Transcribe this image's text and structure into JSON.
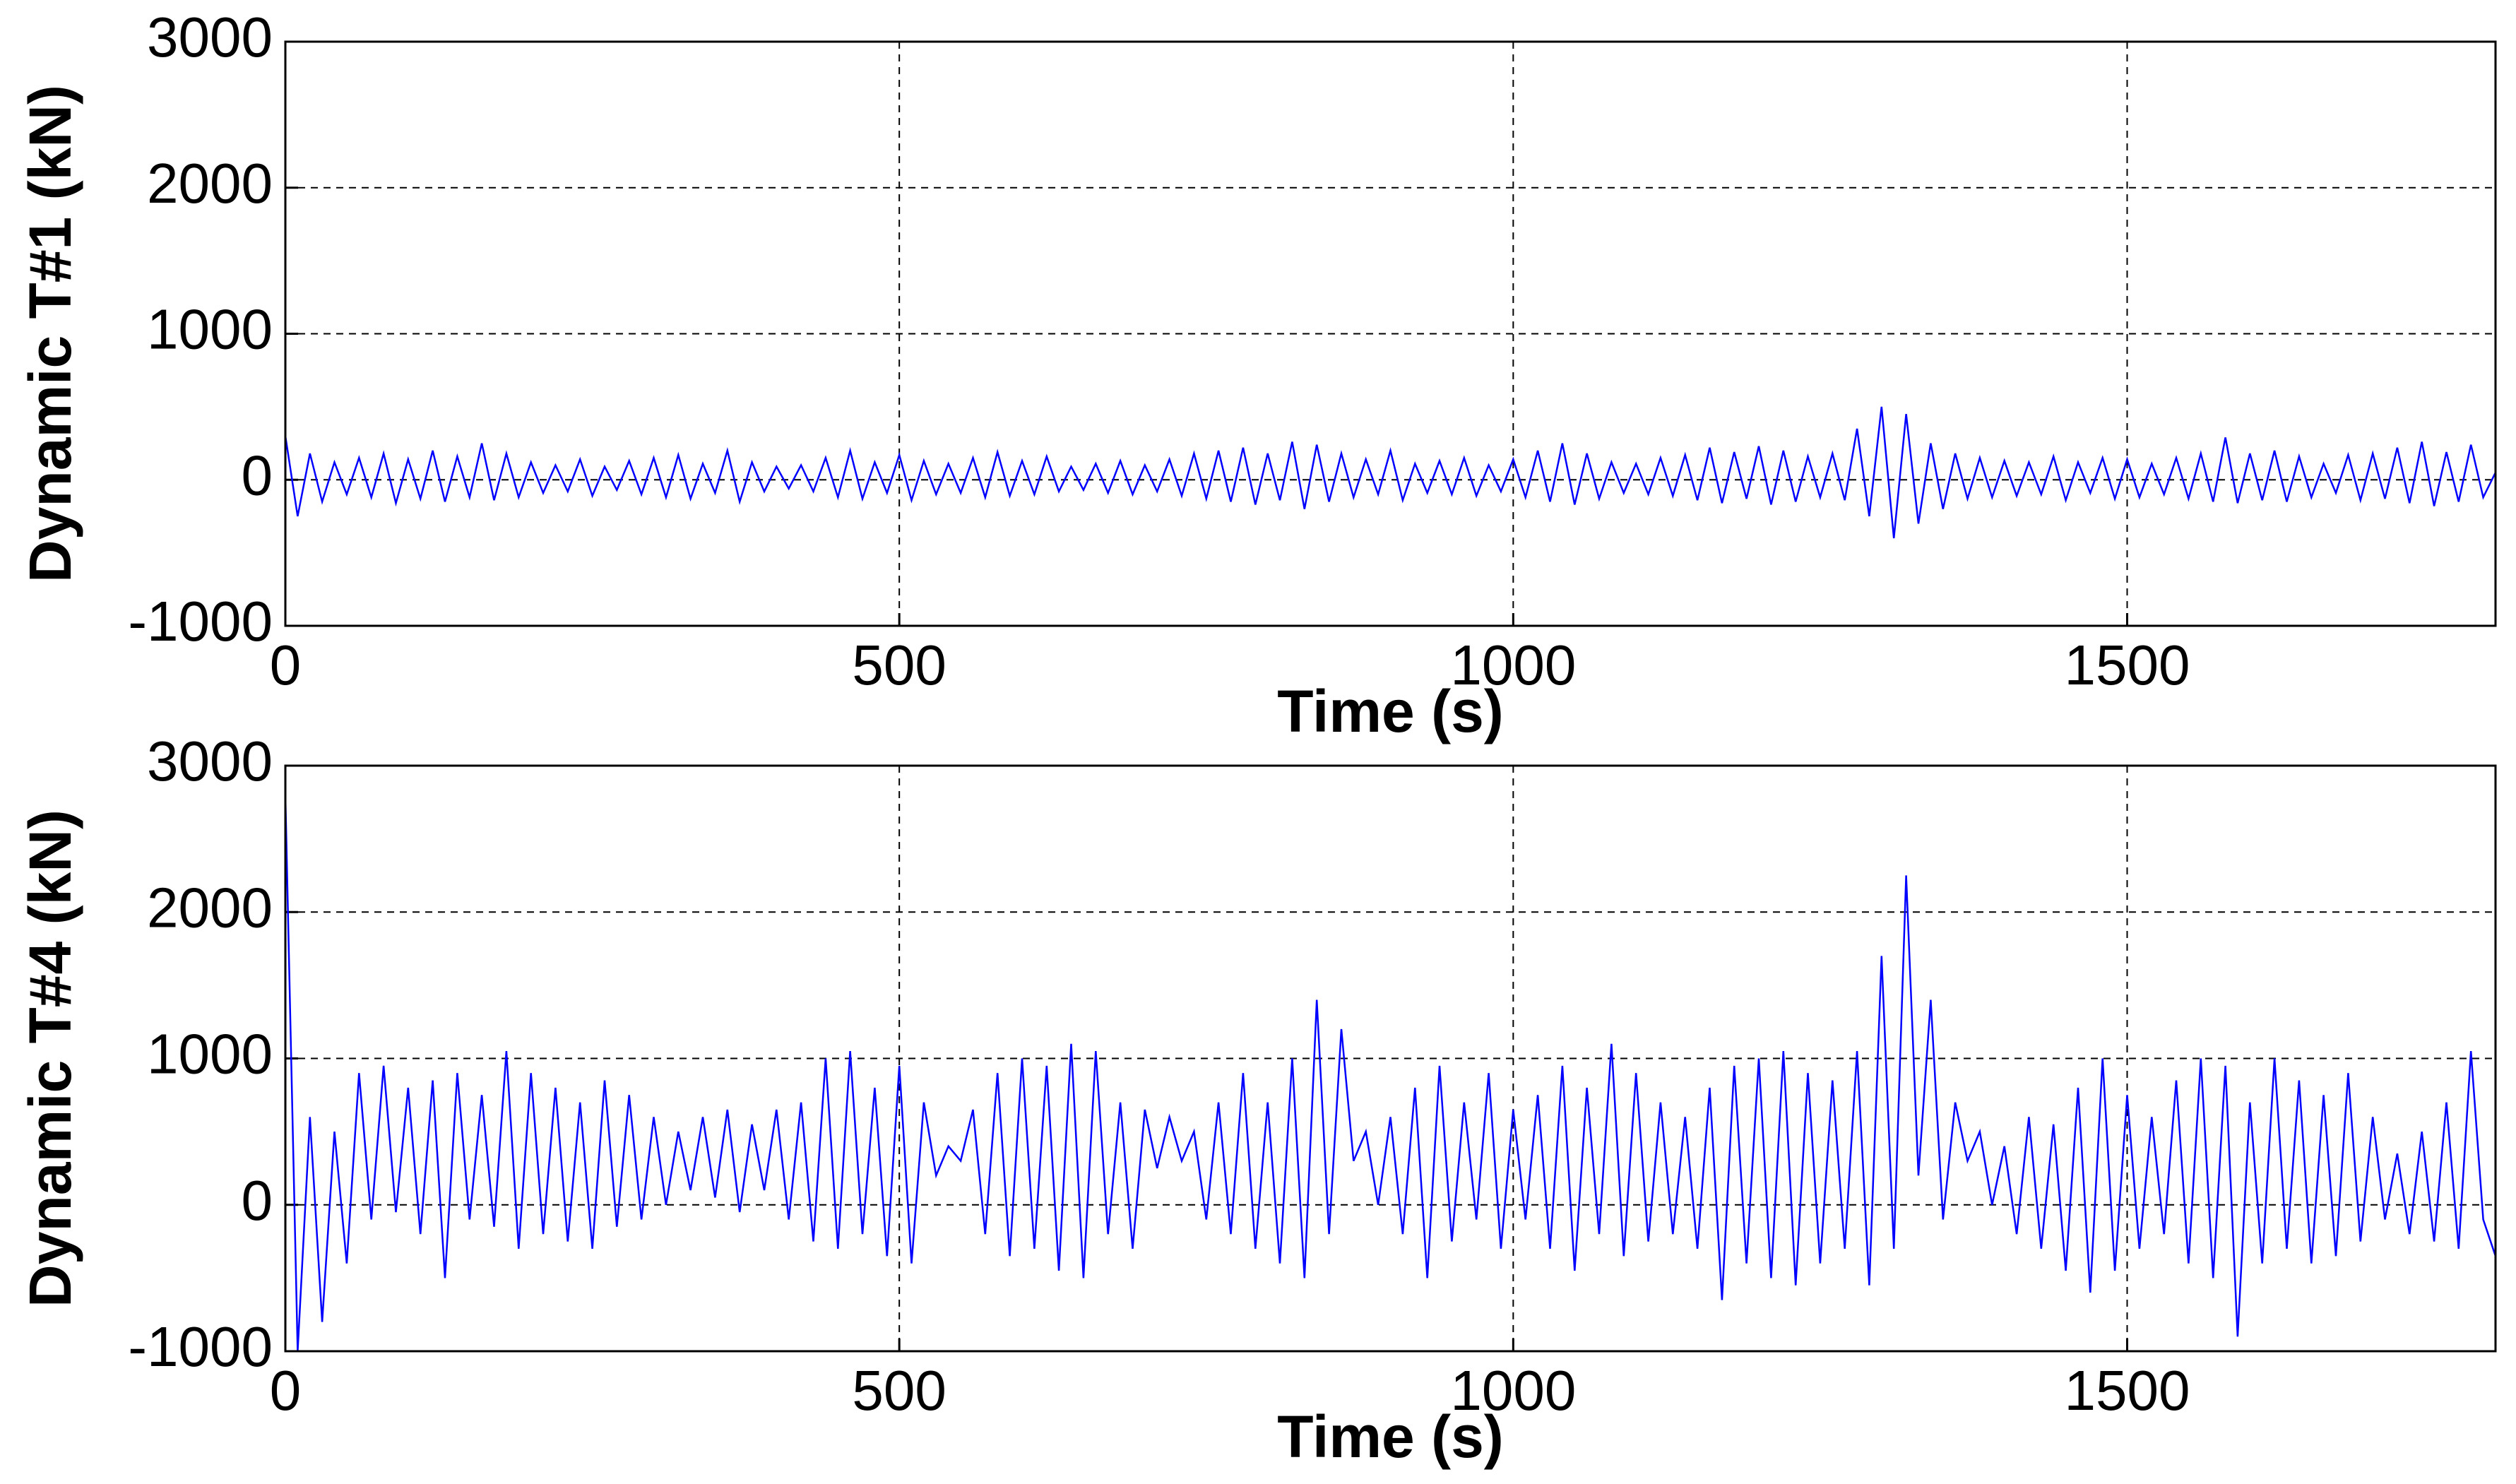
{
  "chart_data": [
    {
      "type": "line",
      "xlabel": "Time (s)",
      "ylabel": "Dynamic T#1 (kN)",
      "color": "#0000ff",
      "xlim": [
        0,
        1800
      ],
      "ylim": [
        -1000,
        3000
      ],
      "xticks": [
        0,
        500,
        1000,
        1500
      ],
      "yticks": [
        -1000,
        0,
        1000,
        2000,
        3000
      ],
      "grid": true,
      "x": [
        0,
        10,
        20,
        30,
        40,
        50,
        60,
        70,
        80,
        90,
        100,
        110,
        120,
        130,
        140,
        150,
        160,
        170,
        180,
        190,
        200,
        210,
        220,
        230,
        240,
        250,
        260,
        270,
        280,
        290,
        300,
        310,
        320,
        330,
        340,
        350,
        360,
        370,
        380,
        390,
        400,
        410,
        420,
        430,
        440,
        450,
        460,
        470,
        480,
        490,
        500,
        510,
        520,
        530,
        540,
        550,
        560,
        570,
        580,
        590,
        600,
        610,
        620,
        630,
        640,
        650,
        660,
        670,
        680,
        690,
        700,
        710,
        720,
        730,
        740,
        750,
        760,
        770,
        780,
        790,
        800,
        810,
        820,
        830,
        840,
        850,
        860,
        870,
        880,
        890,
        900,
        910,
        920,
        930,
        940,
        950,
        960,
        970,
        980,
        990,
        1000,
        1010,
        1020,
        1030,
        1040,
        1050,
        1060,
        1070,
        1080,
        1090,
        1100,
        1110,
        1120,
        1130,
        1140,
        1150,
        1160,
        1170,
        1180,
        1190,
        1200,
        1210,
        1220,
        1230,
        1240,
        1250,
        1260,
        1270,
        1280,
        1290,
        1300,
        1310,
        1320,
        1330,
        1340,
        1350,
        1360,
        1370,
        1380,
        1390,
        1400,
        1410,
        1420,
        1430,
        1440,
        1450,
        1460,
        1470,
        1480,
        1490,
        1500,
        1510,
        1520,
        1530,
        1540,
        1550,
        1560,
        1570,
        1580,
        1590,
        1600,
        1610,
        1620,
        1630,
        1640,
        1650,
        1660,
        1670,
        1680,
        1690,
        1700,
        1710,
        1720,
        1730,
        1740,
        1750,
        1760,
        1770,
        1780,
        1790,
        1800
      ],
      "values": [
        300,
        -250,
        180,
        -150,
        120,
        -100,
        150,
        -120,
        180,
        -160,
        140,
        -130,
        200,
        -150,
        160,
        -120,
        250,
        -140,
        180,
        -120,
        120,
        -90,
        100,
        -80,
        140,
        -110,
        90,
        -70,
        130,
        -100,
        150,
        -120,
        170,
        -130,
        110,
        -90,
        200,
        -150,
        120,
        -80,
        90,
        -60,
        100,
        -80,
        150,
        -120,
        200,
        -130,
        120,
        -90,
        170,
        -140,
        130,
        -100,
        110,
        -90,
        150,
        -120,
        190,
        -110,
        130,
        -100,
        160,
        -80,
        90,
        -70,
        110,
        -90,
        130,
        -100,
        100,
        -80,
        140,
        -110,
        180,
        -130,
        200,
        -150,
        220,
        -170,
        180,
        -140,
        260,
        -200,
        240,
        -150,
        180,
        -120,
        140,
        -100,
        200,
        -140,
        110,
        -90,
        130,
        -100,
        150,
        -110,
        100,
        -80,
        140,
        -120,
        200,
        -150,
        250,
        -170,
        180,
        -130,
        120,
        -90,
        110,
        -100,
        150,
        -110,
        170,
        -140,
        220,
        -160,
        190,
        -130,
        230,
        -170,
        200,
        -150,
        160,
        -120,
        180,
        -140,
        350,
        -250,
        500,
        -400,
        450,
        -300,
        250,
        -200,
        180,
        -130,
        150,
        -120,
        130,
        -110,
        120,
        -100,
        160,
        -140,
        120,
        -90,
        150,
        -130,
        140,
        -120,
        110,
        -100,
        150,
        -130,
        180,
        -150,
        290,
        -160,
        180,
        -140,
        200,
        -150,
        160,
        -120,
        110,
        -90,
        170,
        -140,
        180,
        -130,
        220,
        -160,
        260,
        -180,
        190,
        -150,
        240,
        -120,
        50
      ]
    },
    {
      "type": "line",
      "xlabel": "Time (s)",
      "ylabel": "Dynamic T#4 (kN)",
      "color": "#0000ff",
      "xlim": [
        0,
        1800
      ],
      "ylim": [
        -1000,
        3000
      ],
      "xticks": [
        0,
        500,
        1000,
        1500
      ],
      "yticks": [
        -1000,
        0,
        1000,
        2000,
        3000
      ],
      "grid": true,
      "x": [
        0,
        10,
        20,
        30,
        40,
        50,
        60,
        70,
        80,
        90,
        100,
        110,
        120,
        130,
        140,
        150,
        160,
        170,
        180,
        190,
        200,
        210,
        220,
        230,
        240,
        250,
        260,
        270,
        280,
        290,
        300,
        310,
        320,
        330,
        340,
        350,
        360,
        370,
        380,
        390,
        400,
        410,
        420,
        430,
        440,
        450,
        460,
        470,
        480,
        490,
        500,
        510,
        520,
        530,
        540,
        550,
        560,
        570,
        580,
        590,
        600,
        610,
        620,
        630,
        640,
        650,
        660,
        670,
        680,
        690,
        700,
        710,
        720,
        730,
        740,
        750,
        760,
        770,
        780,
        790,
        800,
        810,
        820,
        830,
        840,
        850,
        860,
        870,
        880,
        890,
        900,
        910,
        920,
        930,
        940,
        950,
        960,
        970,
        980,
        990,
        1000,
        1010,
        1020,
        1030,
        1040,
        1050,
        1060,
        1070,
        1080,
        1090,
        1100,
        1110,
        1120,
        1130,
        1140,
        1150,
        1160,
        1170,
        1180,
        1190,
        1200,
        1210,
        1220,
        1230,
        1240,
        1250,
        1260,
        1270,
        1280,
        1290,
        1300,
        1310,
        1320,
        1330,
        1340,
        1350,
        1360,
        1370,
        1380,
        1390,
        1400,
        1410,
        1420,
        1430,
        1440,
        1450,
        1460,
        1470,
        1480,
        1490,
        1500,
        1510,
        1520,
        1530,
        1540,
        1550,
        1560,
        1570,
        1580,
        1590,
        1600,
        1610,
        1620,
        1630,
        1640,
        1650,
        1660,
        1670,
        1680,
        1690,
        1700,
        1710,
        1720,
        1730,
        1740,
        1750,
        1760,
        1770,
        1780,
        1790,
        1800
      ],
      "values": [
        2800,
        -1000,
        600,
        -800,
        500,
        -400,
        900,
        -100,
        950,
        -50,
        800,
        -200,
        850,
        -500,
        900,
        -100,
        750,
        -150,
        1050,
        -300,
        900,
        -200,
        800,
        -250,
        700,
        -300,
        850,
        -150,
        750,
        -100,
        600,
        0,
        500,
        100,
        600,
        50,
        650,
        -50,
        550,
        100,
        650,
        -100,
        700,
        -250,
        1000,
        -300,
        1050,
        -200,
        800,
        -350,
        950,
        -400,
        700,
        200,
        400,
        300,
        650,
        -200,
        900,
        -350,
        1000,
        -300,
        950,
        -450,
        1100,
        -500,
        1050,
        -200,
        700,
        -300,
        650,
        250,
        600,
        300,
        500,
        -100,
        700,
        -200,
        900,
        -300,
        700,
        -400,
        1000,
        -500,
        1400,
        -200,
        1200,
        300,
        500,
        0,
        600,
        -200,
        800,
        -500,
        950,
        -250,
        700,
        -100,
        900,
        -300,
        650,
        -100,
        750,
        -300,
        950,
        -450,
        800,
        -200,
        1100,
        -350,
        900,
        -250,
        700,
        -200,
        600,
        -300,
        800,
        -650,
        950,
        -400,
        1000,
        -500,
        1050,
        -550,
        900,
        -400,
        850,
        -300,
        1050,
        -550,
        1700,
        -300,
        2250,
        200,
        1400,
        -100,
        700,
        300,
        500,
        0,
        400,
        -200,
        600,
        -300,
        550,
        -450,
        800,
        -600,
        1000,
        -450,
        750,
        -300,
        600,
        -200,
        850,
        -400,
        1000,
        -500,
        950,
        -900,
        700,
        -400,
        1000,
        -300,
        850,
        -400,
        750,
        -350,
        900,
        -250,
        600,
        -100,
        350,
        -200,
        500,
        -250,
        700,
        -300,
        1050,
        -100,
        -350
      ]
    }
  ]
}
